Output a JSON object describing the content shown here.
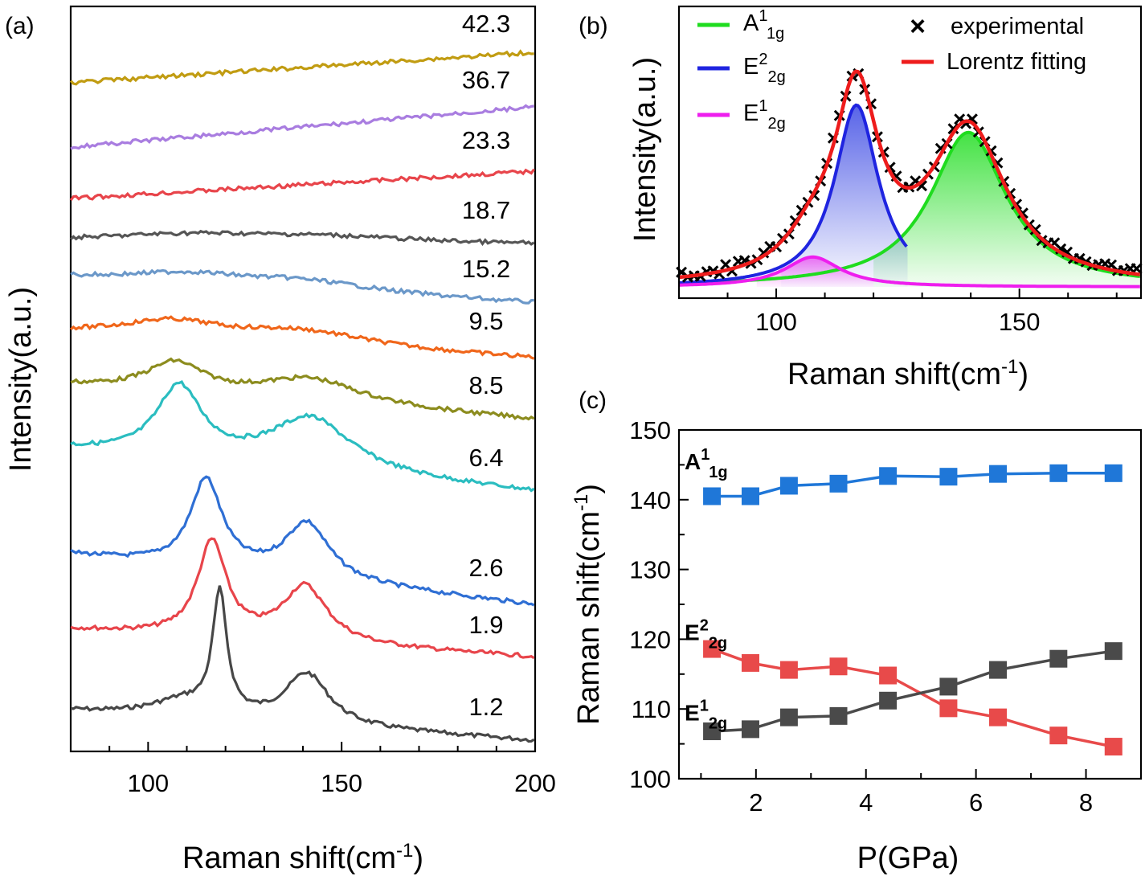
{
  "panels": {
    "a": {
      "label": "(a)",
      "xlabel": "Raman shift(cm",
      "xlabel_sup": "-1",
      "xlabel_end": ")",
      "ylabel": "Intensity(a.u.)"
    },
    "b": {
      "label": "(b)",
      "xlabel": "Raman shift(cm",
      "xlabel_sup": "-1",
      "xlabel_end": ")",
      "ylabel": "Intensity(a.u.)"
    },
    "c": {
      "label": "(c)",
      "xlabel": "P(GPa)",
      "ylabel": "Raman shift(cm",
      "ylabel_sup": "-1",
      "ylabel_end": ")"
    }
  },
  "chart_data": [
    {
      "id": "a",
      "type": "line",
      "xlim": [
        80,
        200
      ],
      "x_ticks": [
        100,
        150,
        200
      ],
      "series": [
        {
          "name": "1.2",
          "color": "#474747",
          "peaks": [
            [
              118.5,
              2.2,
              150
            ],
            [
              141,
              7,
              64
            ],
            [
              109,
              10,
              20
            ]
          ],
          "base": 0
        },
        {
          "name": "1.9",
          "color": "#e8454b",
          "peaks": [
            [
              116.5,
              4.5,
              118
            ],
            [
              140.5,
              7,
              70
            ]
          ],
          "base": 0
        },
        {
          "name": "2.6",
          "color": "#2f6fd4",
          "peaks": [
            [
              115,
              5,
              110
            ],
            [
              141,
              7,
              70
            ]
          ],
          "base": 0
        },
        {
          "name": "6.4",
          "color": "#2bbdc0",
          "peaks": [
            [
              108,
              7,
              88
            ],
            [
              142,
              13,
              66
            ]
          ],
          "base": 0
        },
        {
          "name": "8.5",
          "color": "#8c8c1e",
          "peaks": [
            [
              107,
              9,
              36
            ],
            [
              142,
              16,
              30
            ]
          ],
          "base": 0
        },
        {
          "name": "9.5",
          "color": "#f0661a",
          "peaks": [
            [
              106,
              16,
              20
            ],
            [
              140,
              22,
              18
            ]
          ],
          "base": 0
        },
        {
          "name": "15.2",
          "color": "#6b98c9",
          "peaks": [
            [
              110,
              18,
              12
            ],
            [
              140,
              22,
              12
            ]
          ],
          "base": 0
        },
        {
          "name": "18.7",
          "color": "#555555",
          "peaks": [
            [
              110,
              25,
              8
            ],
            [
              145,
              30,
              8
            ]
          ],
          "base": 0
        },
        {
          "name": "23.3",
          "color": "#e8454b",
          "peaks": [],
          "base": 1
        },
        {
          "name": "36.7",
          "color": "#a97de0",
          "peaks": [],
          "base": 1
        },
        {
          "name": "42.3",
          "color": "#c19c12",
          "peaks": [],
          "base": 1
        }
      ]
    },
    {
      "id": "b",
      "type": "line",
      "xlim": [
        80,
        175
      ],
      "x_ticks": [
        100,
        150
      ],
      "components": [
        {
          "name": "A",
          "sup": "1",
          "sub": "1g",
          "center": 139.5,
          "hwhm": 9.5,
          "amp": 0.62,
          "color": "#1fdc1f"
        },
        {
          "name": "E",
          "sup": "2",
          "sub": "2g",
          "center": 116.5,
          "hwhm": 5.5,
          "amp": 0.73,
          "color": "#1f24e0"
        },
        {
          "name": "E",
          "sup": "1",
          "sub": "2g",
          "center": 107.5,
          "hwhm": 7,
          "amp": 0.12,
          "color": "#ee1eee"
        }
      ],
      "legend_right": [
        {
          "label": "experimental",
          "marker": "×",
          "color": "#000000"
        },
        {
          "label": "Lorentz fitting",
          "marker": "line",
          "color": "#ee1c1c"
        }
      ]
    },
    {
      "id": "c",
      "type": "scatter",
      "xlim": [
        0.6,
        9.0
      ],
      "ylim": [
        100,
        150
      ],
      "x_ticks": [
        2,
        4,
        6,
        8
      ],
      "y_ticks": [
        100,
        110,
        120,
        130,
        140,
        150
      ],
      "x": [
        1.2,
        1.9,
        2.6,
        3.5,
        4.4,
        5.5,
        6.4,
        7.5,
        8.5
      ],
      "series": [
        {
          "name": "A",
          "sup": "1",
          "sub": "1g",
          "color": "#1f77d8",
          "values": [
            140.5,
            140.5,
            142.0,
            142.3,
            143.4,
            143.3,
            143.7,
            143.8,
            143.8
          ],
          "label_y": 145.5
        },
        {
          "name": "E",
          "sup": "2",
          "sub": "2g",
          "color": "#e84a4a",
          "values": [
            118.6,
            116.6,
            115.6,
            116.1,
            114.8,
            110.1,
            108.8,
            106.2,
            104.6
          ],
          "label_y": 121.0
        },
        {
          "name": "E",
          "sup": "1",
          "sub": "2g",
          "color": "#4a4a4a",
          "values": [
            106.8,
            107.1,
            108.8,
            109.0,
            111.2,
            113.2,
            115.6,
            117.2,
            118.3
          ],
          "label_y": 109.5
        }
      ]
    }
  ]
}
